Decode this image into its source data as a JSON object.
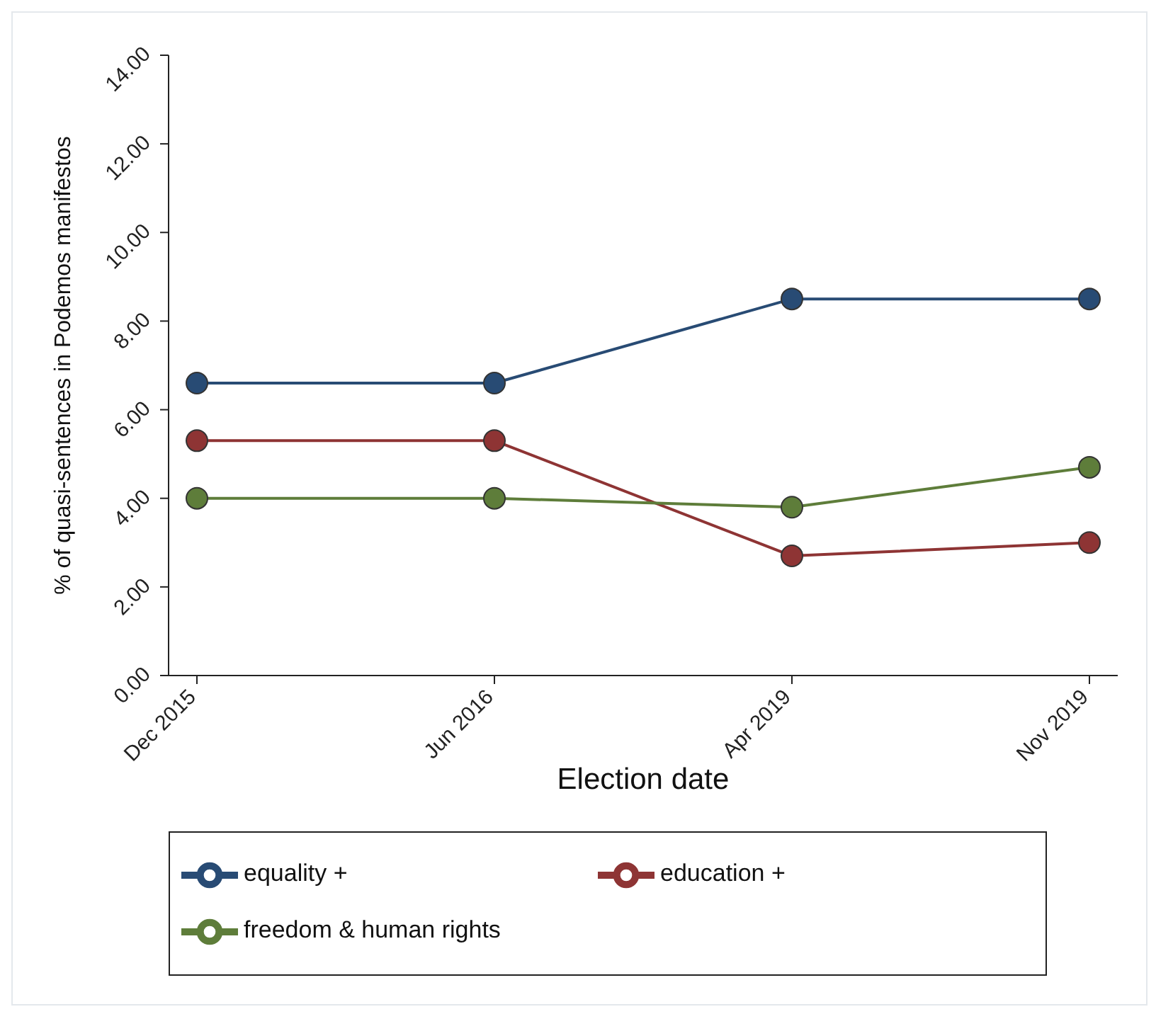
{
  "chart_data": {
    "type": "line",
    "xlabel": "Election date",
    "ylabel": "% of quasi-sentences in Podemos manifestos",
    "categories": [
      "Dec 2015",
      "Jun 2016",
      "Apr 2019",
      "Nov 2019"
    ],
    "series": [
      {
        "name": "equality +",
        "color": "#284b74",
        "values": [
          6.6,
          6.6,
          8.5,
          8.5
        ]
      },
      {
        "name": "education +",
        "color": "#8e3434",
        "values": [
          5.3,
          5.3,
          2.7,
          3.0
        ]
      },
      {
        "name": "freedom & human rights",
        "color": "#5e7d3a",
        "values": [
          4.0,
          4.0,
          3.8,
          4.7
        ]
      }
    ],
    "ylim": [
      0,
      14
    ],
    "yticks": [
      {
        "value": 0,
        "label": "0.00"
      },
      {
        "value": 2,
        "label": "2.00"
      },
      {
        "value": 4,
        "label": "4.00"
      },
      {
        "value": 6,
        "label": "6.00"
      },
      {
        "value": 8,
        "label": "8.00"
      },
      {
        "value": 10,
        "label": "10.00"
      },
      {
        "value": 12,
        "label": "12.00"
      },
      {
        "value": 14,
        "label": "14.00"
      }
    ],
    "grid": false,
    "legend": "bottom",
    "marker": "circle",
    "line_style": "solid"
  }
}
